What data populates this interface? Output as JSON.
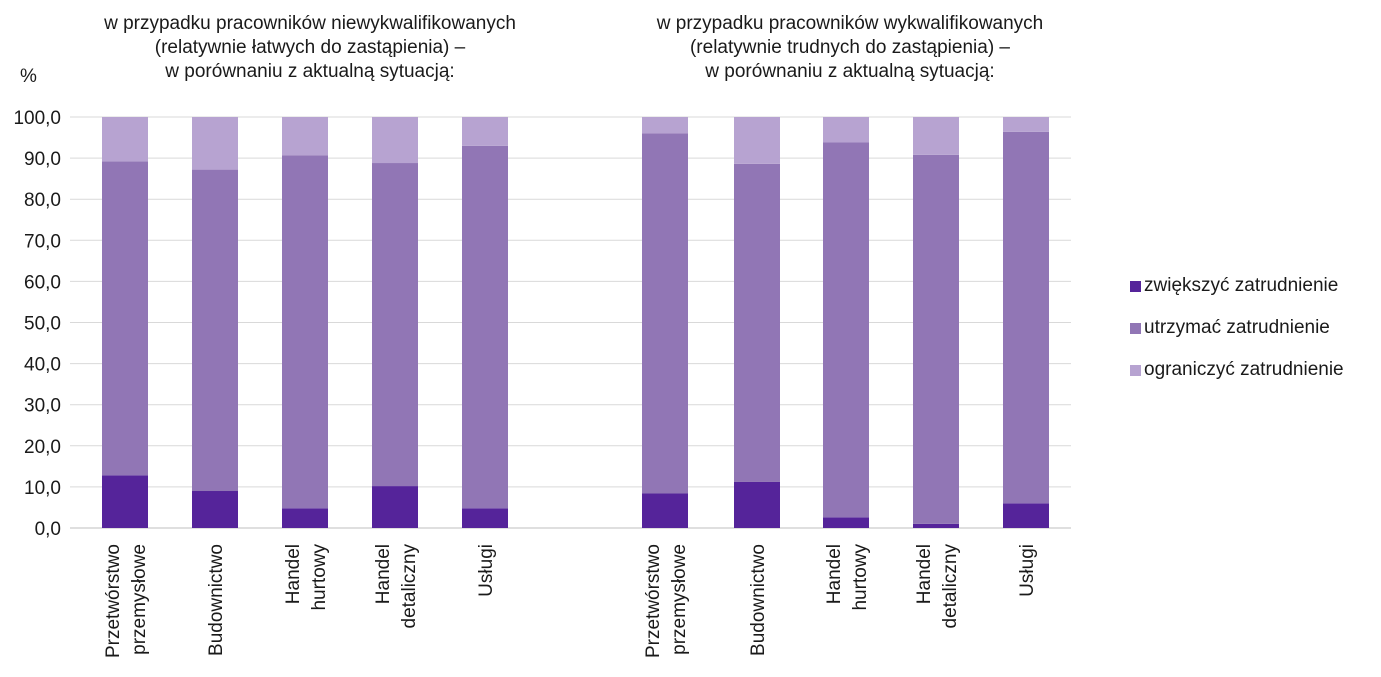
{
  "y_unit": "%",
  "colors": {
    "increase": "#55249a",
    "maintain": "#9176b5",
    "reduce": "#b7a3d1",
    "grid": "#d9d9d9",
    "axis": "#bfbfbf"
  },
  "legend": [
    {
      "label": "zwiększyć zatrudnienie",
      "color": "#55249a"
    },
    {
      "label": "utrzymać zatrudnienie",
      "color": "#9176b5"
    },
    {
      "label": "ograniczyć zatrudnienie",
      "color": "#b7a3d1"
    }
  ],
  "chart_data": [
    {
      "type": "bar",
      "stacked": true,
      "title_lines": [
        "w przypadku pracowników niewykwalifikowanych",
        "(relatywnie łatwych do zastąpienia) –",
        "w porównaniu z aktualną sytuacją:"
      ],
      "categories": [
        [
          "Przetwórstwo",
          "przemysłowe"
        ],
        [
          "Budownictwo"
        ],
        [
          "Handel",
          "hurtowy"
        ],
        [
          "Handel",
          "detaliczny"
        ],
        [
          "Usługi"
        ]
      ],
      "series": [
        {
          "name": "zwiększyć zatrudnienie",
          "values": [
            12.8,
            9.0,
            4.8,
            10.2,
            4.8
          ]
        },
        {
          "name": "utrzymać zatrudnienie",
          "values": [
            76.4,
            78.2,
            85.9,
            78.6,
            88.2
          ]
        },
        {
          "name": "ograniczyć zatrudnienie",
          "values": [
            10.8,
            12.8,
            9.3,
            11.2,
            7.0
          ]
        }
      ],
      "ylim": [
        0,
        100
      ],
      "yticks": [
        "0,0",
        "10,0",
        "20,0",
        "30,0",
        "40,0",
        "50,0",
        "60,0",
        "70,0",
        "80,0",
        "90,0",
        "100,0"
      ],
      "grid": true
    },
    {
      "type": "bar",
      "stacked": true,
      "title_lines": [
        "w przypadku pracowników wykwalifikowanych",
        "(relatywnie trudnych do zastąpienia) –",
        "w porównaniu z aktualną sytuacją:"
      ],
      "categories": [
        [
          "Przetwórstwo",
          "przemysłowe"
        ],
        [
          "Budownictwo"
        ],
        [
          "Handel",
          "hurtowy"
        ],
        [
          "Handel",
          "detaliczny"
        ],
        [
          "Usługi"
        ]
      ],
      "series": [
        {
          "name": "zwiększyć zatrudnienie",
          "values": [
            8.4,
            11.2,
            2.6,
            1.0,
            6.0
          ]
        },
        {
          "name": "utrzymać zatrudnienie",
          "values": [
            87.6,
            77.4,
            91.2,
            89.8,
            90.4
          ]
        },
        {
          "name": "ograniczyć zatrudnienie",
          "values": [
            4.0,
            11.4,
            6.2,
            9.2,
            3.6
          ]
        }
      ],
      "ylim": [
        0,
        100
      ],
      "grid": true
    }
  ]
}
